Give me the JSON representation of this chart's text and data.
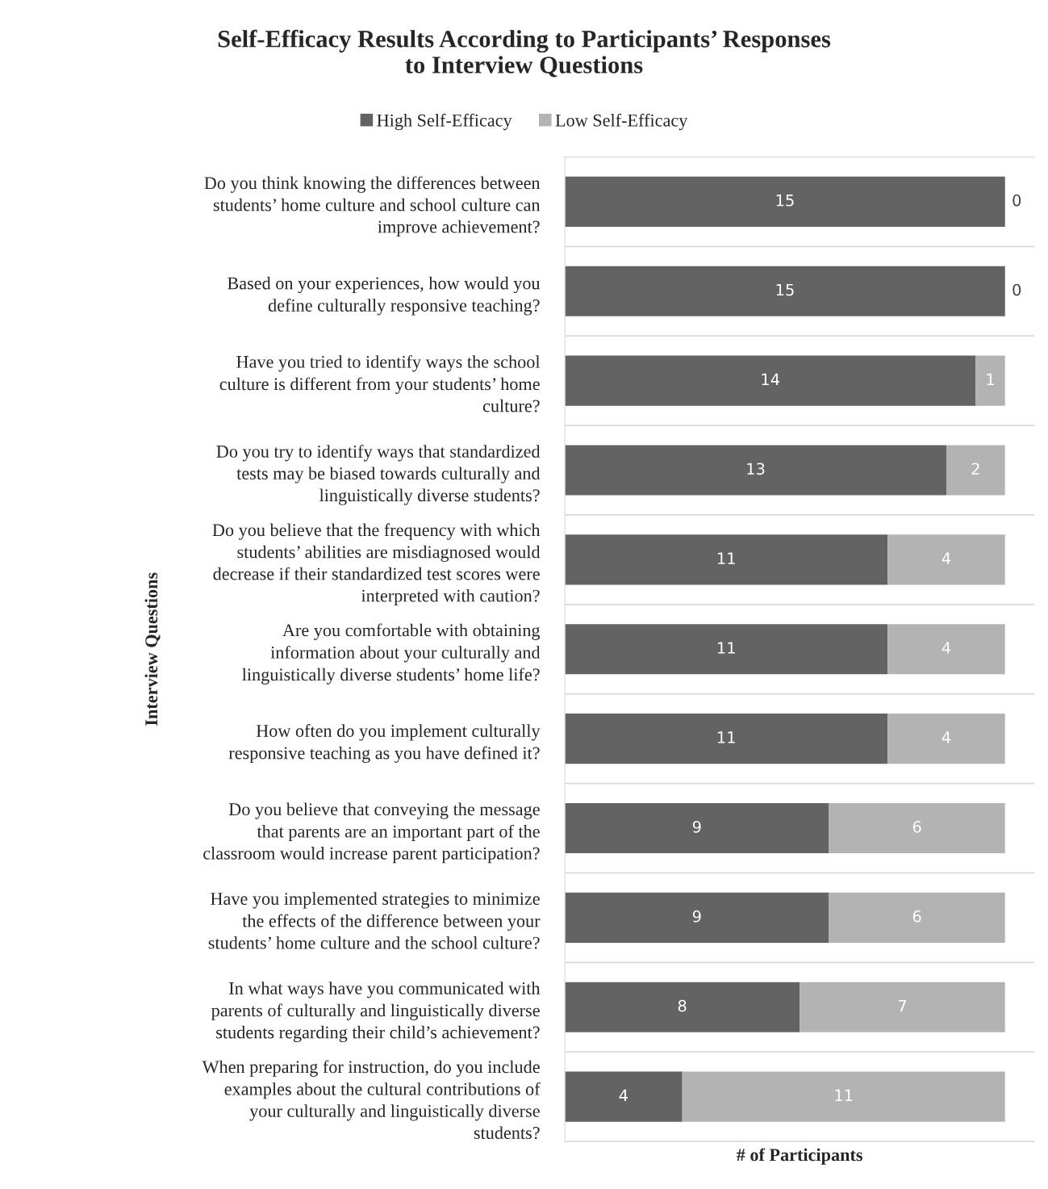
{
  "chart_data": {
    "type": "bar",
    "orientation": "horizontal",
    "stacked": true,
    "title": "Self-Efficacy Results According to Participants’ Responses\nto Interview Questions",
    "xlabel": "# of Participants",
    "ylabel": "Interview Questions",
    "categories": [
      "Do you think knowing the differences between\nstudents’ home culture and school culture can\nimprove achievement?",
      "Based on your experiences, how would you\ndefine culturally responsive teaching?",
      "Have you tried to identify ways the school\nculture is different from your students’ home\nculture?",
      "Do you try to identify ways that standardized\ntests may be biased towards culturally and\nlinguistically diverse students?",
      "Do you believe that the frequency with which\nstudents’ abilities are misdiagnosed would\ndecrease if their standardized test scores were\ninterpreted with caution?",
      "Are you comfortable with obtaining\ninformation about your culturally and\nlinguistically diverse students’ home life?",
      "How often do you implement culturally\nresponsive teaching as you have defined it?",
      "Do you believe that conveying the message\nthat parents are an important part of the\nclassroom would increase parent participation?",
      "Have you implemented strategies to minimize\nthe effects of the difference between your\nstudents’ home culture and the school culture?",
      "In what ways have you communicated with\nparents of culturally and linguistically diverse\nstudents regarding their child’s achievement?",
      "When preparing for instruction, do you include\nexamples about the cultural contributions of\nyour culturally and linguistically diverse\nstudents?"
    ],
    "series": [
      {
        "name": "High Self-Efficacy",
        "color": "#636363",
        "values": [
          15,
          15,
          14,
          13,
          11,
          11,
          11,
          9,
          9,
          8,
          4
        ]
      },
      {
        "name": "Low Self-Efficacy",
        "color": "#b3b3b3",
        "values": [
          0,
          0,
          1,
          2,
          4,
          4,
          4,
          6,
          6,
          7,
          11
        ]
      }
    ],
    "xlim": [
      0,
      16
    ],
    "tick_labels": "y",
    "data_labels": true,
    "grid": "y",
    "legend": "top"
  }
}
